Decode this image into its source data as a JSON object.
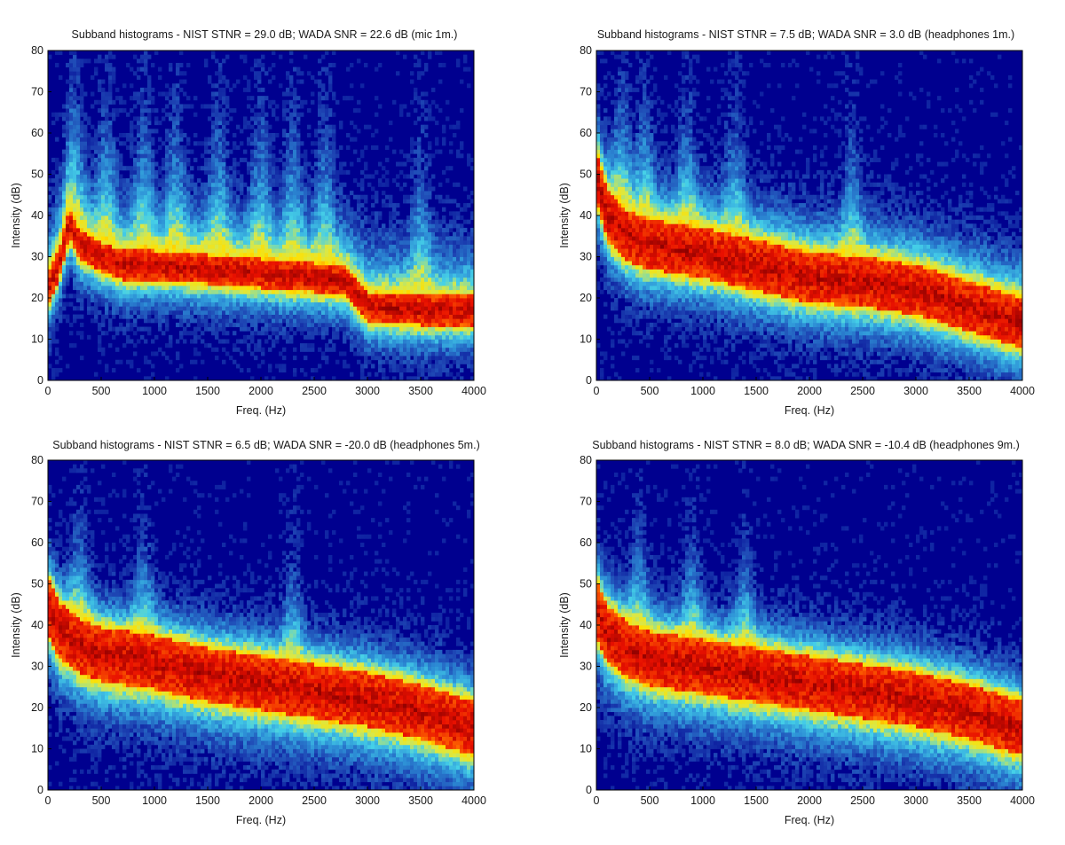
{
  "chart_data": [
    {
      "type": "heatmap",
      "title": "Subband histograms - NIST STNR = 29.0 dB; WADA SNR  = 22.6 dB (mic 1m.)",
      "xlabel": "Freq. (Hz)",
      "ylabel": "Intensity (dB)",
      "xlim": [
        0,
        4000
      ],
      "ylim": [
        0,
        80
      ],
      "xticks": [
        0,
        500,
        1000,
        1500,
        2000,
        2500,
        3000,
        3500,
        4000
      ],
      "yticks": [
        0,
        10,
        20,
        30,
        40,
        50,
        60,
        70,
        80
      ],
      "colormap": [
        "#00008f",
        "#1e46b4",
        "#2d8fd6",
        "#45d0e8",
        "#d8e84a",
        "#ffe000",
        "#ff6a00",
        "#e81000",
        "#8b0000"
      ],
      "band_center_db": {
        "freq_hz": [
          0,
          100,
          200,
          300,
          500,
          700,
          1000,
          1500,
          2000,
          2500,
          2800,
          3000,
          3500,
          4000
        ],
        "db": [
          22,
          28,
          38,
          33,
          30,
          28,
          28,
          27,
          26,
          25,
          24,
          18,
          17,
          17
        ]
      },
      "band_width_db": 7,
      "spread_above_db": 18,
      "spread_below_db": 12,
      "peak_frequencies_hz": [
        250,
        550,
        900,
        1200,
        1600,
        2000,
        2300,
        2600,
        3500
      ]
    },
    {
      "type": "heatmap",
      "title": "Subband histograms - NIST STNR = 7.5 dB; WADA SNR  = 3.0 dB (headphones 1m.)",
      "xlabel": "Freq. (Hz)",
      "ylabel": "Intensity (dB)",
      "xlim": [
        0,
        4000
      ],
      "ylim": [
        0,
        80
      ],
      "xticks": [
        0,
        500,
        1000,
        1500,
        2000,
        2500,
        3000,
        3500,
        4000
      ],
      "yticks": [
        0,
        10,
        20,
        30,
        40,
        50,
        60,
        70,
        80
      ],
      "colormap": [
        "#00008f",
        "#1e46b4",
        "#2d8fd6",
        "#45d0e8",
        "#d8e84a",
        "#ffe000",
        "#ff6a00",
        "#e81000",
        "#8b0000"
      ],
      "band_center_db": {
        "freq_hz": [
          0,
          100,
          300,
          500,
          1000,
          1500,
          2000,
          2500,
          3000,
          3500,
          4000
        ],
        "db": [
          50,
          40,
          35,
          33,
          31,
          28,
          25,
          24,
          22,
          18,
          14
        ]
      },
      "band_width_db": 12,
      "spread_above_db": 15,
      "spread_below_db": 14,
      "peak_frequencies_hz": [
        250,
        450,
        850,
        1300,
        2400
      ]
    },
    {
      "type": "heatmap",
      "title": "Subband histograms - NIST STNR = 6.5 dB; WADA SNR  = -20.0 dB (headphones 5m.)",
      "xlabel": "Freq. (Hz)",
      "ylabel": "Intensity (dB)",
      "xlim": [
        0,
        4000
      ],
      "ylim": [
        0,
        80
      ],
      "xticks": [
        0,
        500,
        1000,
        1500,
        2000,
        2500,
        3000,
        3500,
        4000
      ],
      "yticks": [
        0,
        10,
        20,
        30,
        40,
        50,
        60,
        70,
        80
      ],
      "colormap": [
        "#00008f",
        "#1e46b4",
        "#2d8fd6",
        "#45d0e8",
        "#d8e84a",
        "#ffe000",
        "#ff6a00",
        "#e81000",
        "#8b0000"
      ],
      "band_center_db": {
        "freq_hz": [
          0,
          100,
          300,
          500,
          1000,
          1500,
          2000,
          2500,
          3000,
          3500,
          4000
        ],
        "db": [
          45,
          39,
          35,
          33,
          31,
          28,
          26,
          24,
          22,
          19,
          15
        ]
      },
      "band_width_db": 13,
      "spread_above_db": 12,
      "spread_below_db": 16,
      "peak_frequencies_hz": [
        300,
        900,
        2300
      ]
    },
    {
      "type": "heatmap",
      "title": "Subband histograms - NIST STNR = 8.0 dB; WADA SNR  = -10.4 dB (headphones 9m.)",
      "xlabel": "Freq. (Hz)",
      "ylabel": "Intensity (dB)",
      "xlim": [
        0,
        4000
      ],
      "ylim": [
        0,
        80
      ],
      "xticks": [
        0,
        500,
        1000,
        1500,
        2000,
        2500,
        3000,
        3500,
        4000
      ],
      "yticks": [
        0,
        10,
        20,
        30,
        40,
        50,
        60,
        70,
        80
      ],
      "colormap": [
        "#00008f",
        "#1e46b4",
        "#2d8fd6",
        "#45d0e8",
        "#d8e84a",
        "#ffe000",
        "#ff6a00",
        "#e81000",
        "#8b0000"
      ],
      "band_center_db": {
        "freq_hz": [
          0,
          100,
          300,
          500,
          1000,
          1500,
          2000,
          2500,
          3000,
          3500,
          4000
        ],
        "db": [
          44,
          38,
          34,
          32,
          30,
          28,
          26,
          24,
          22,
          19,
          15
        ]
      },
      "band_width_db": 13,
      "spread_above_db": 12,
      "spread_below_db": 16,
      "peak_frequencies_hz": [
        400,
        900,
        1400
      ]
    }
  ]
}
